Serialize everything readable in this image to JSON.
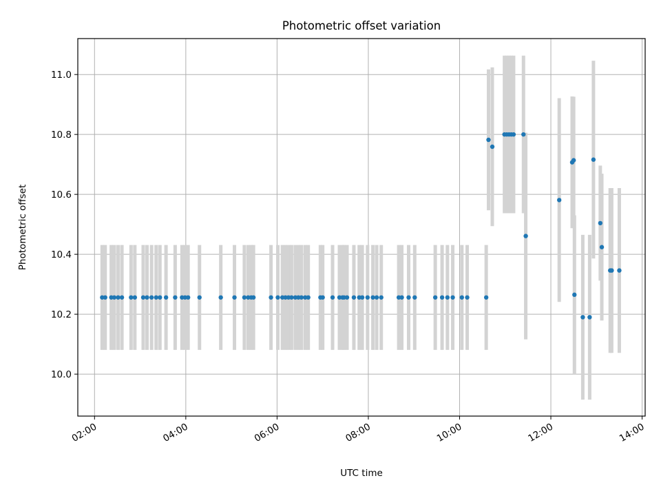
{
  "chart_data": {
    "type": "scatter",
    "title": "Photometric offset variation",
    "xlabel": "UTC time",
    "ylabel": "Photometric offset",
    "x_ticks": [
      "02:00",
      "04:00",
      "06:00",
      "08:00",
      "10:00",
      "12:00",
      "14:00"
    ],
    "y_ticks": [
      "10.0",
      "10.2",
      "10.4",
      "10.6",
      "10.8",
      "11.0"
    ],
    "xlim": [
      "01:38",
      "14:04"
    ],
    "ylim": [
      9.86,
      11.12
    ],
    "grid": true,
    "colors": {
      "point": "#1f77b4",
      "errorbar": "#d3d3d3",
      "grid": "#b0b0b0"
    },
    "points": [
      {
        "x": "02:10",
        "y": 10.256,
        "err": 0.175
      },
      {
        "x": "02:14",
        "y": 10.256,
        "err": 0.175
      },
      {
        "x": "02:22",
        "y": 10.256,
        "err": 0.175
      },
      {
        "x": "02:26",
        "y": 10.256,
        "err": 0.175
      },
      {
        "x": "02:31",
        "y": 10.256,
        "err": 0.175
      },
      {
        "x": "02:36",
        "y": 10.256,
        "err": 0.175
      },
      {
        "x": "02:48",
        "y": 10.256,
        "err": 0.175
      },
      {
        "x": "02:53",
        "y": 10.256,
        "err": 0.175
      },
      {
        "x": "03:04",
        "y": 10.256,
        "err": 0.175
      },
      {
        "x": "03:09",
        "y": 10.256,
        "err": 0.175
      },
      {
        "x": "03:15",
        "y": 10.256,
        "err": 0.175
      },
      {
        "x": "03:21",
        "y": 10.256,
        "err": 0.175
      },
      {
        "x": "03:26",
        "y": 10.256,
        "err": 0.175
      },
      {
        "x": "03:34",
        "y": 10.256,
        "err": 0.175
      },
      {
        "x": "03:46",
        "y": 10.256,
        "err": 0.175
      },
      {
        "x": "03:55",
        "y": 10.256,
        "err": 0.175
      },
      {
        "x": "03:59",
        "y": 10.256,
        "err": 0.175
      },
      {
        "x": "04:03",
        "y": 10.256,
        "err": 0.175
      },
      {
        "x": "04:18",
        "y": 10.256,
        "err": 0.175
      },
      {
        "x": "04:46",
        "y": 10.256,
        "err": 0.175
      },
      {
        "x": "05:04",
        "y": 10.256,
        "err": 0.175
      },
      {
        "x": "05:17",
        "y": 10.256,
        "err": 0.175
      },
      {
        "x": "05:22",
        "y": 10.256,
        "err": 0.175
      },
      {
        "x": "05:26",
        "y": 10.256,
        "err": 0.175
      },
      {
        "x": "05:29",
        "y": 10.256,
        "err": 0.175
      },
      {
        "x": "05:52",
        "y": 10.256,
        "err": 0.175
      },
      {
        "x": "06:01",
        "y": 10.256,
        "err": 0.175
      },
      {
        "x": "06:07",
        "y": 10.256,
        "err": 0.175
      },
      {
        "x": "06:11",
        "y": 10.256,
        "err": 0.175
      },
      {
        "x": "06:15",
        "y": 10.256,
        "err": 0.175
      },
      {
        "x": "06:19",
        "y": 10.256,
        "err": 0.175
      },
      {
        "x": "06:24",
        "y": 10.256,
        "err": 0.175
      },
      {
        "x": "06:28",
        "y": 10.256,
        "err": 0.175
      },
      {
        "x": "06:32",
        "y": 10.256,
        "err": 0.175
      },
      {
        "x": "06:37",
        "y": 10.256,
        "err": 0.175
      },
      {
        "x": "06:41",
        "y": 10.256,
        "err": 0.175
      },
      {
        "x": "06:57",
        "y": 10.256,
        "err": 0.175
      },
      {
        "x": "07:00",
        "y": 10.256,
        "err": 0.175
      },
      {
        "x": "07:13",
        "y": 10.256,
        "err": 0.175
      },
      {
        "x": "07:22",
        "y": 10.256,
        "err": 0.175
      },
      {
        "x": "07:26",
        "y": 10.256,
        "err": 0.175
      },
      {
        "x": "07:28",
        "y": 10.256,
        "err": 0.175
      },
      {
        "x": "07:32",
        "y": 10.256,
        "err": 0.175
      },
      {
        "x": "07:41",
        "y": 10.256,
        "err": 0.175
      },
      {
        "x": "07:48",
        "y": 10.256,
        "err": 0.175
      },
      {
        "x": "07:52",
        "y": 10.256,
        "err": 0.175
      },
      {
        "x": "07:59",
        "y": 10.256,
        "err": 0.175
      },
      {
        "x": "08:06",
        "y": 10.256,
        "err": 0.175
      },
      {
        "x": "08:11",
        "y": 10.256,
        "err": 0.175
      },
      {
        "x": "08:17",
        "y": 10.256,
        "err": 0.175
      },
      {
        "x": "08:40",
        "y": 10.256,
        "err": 0.175
      },
      {
        "x": "08:44",
        "y": 10.256,
        "err": 0.175
      },
      {
        "x": "08:53",
        "y": 10.256,
        "err": 0.175
      },
      {
        "x": "09:01",
        "y": 10.256,
        "err": 0.175
      },
      {
        "x": "09:28",
        "y": 10.256,
        "err": 0.175
      },
      {
        "x": "09:37",
        "y": 10.256,
        "err": 0.175
      },
      {
        "x": "09:44",
        "y": 10.256,
        "err": 0.175
      },
      {
        "x": "09:51",
        "y": 10.256,
        "err": 0.175
      },
      {
        "x": "10:03",
        "y": 10.256,
        "err": 0.175
      },
      {
        "x": "10:10",
        "y": 10.256,
        "err": 0.175
      },
      {
        "x": "10:35",
        "y": 10.256,
        "err": 0.175
      },
      {
        "x": "10:38",
        "y": 10.782,
        "err": 0.235
      },
      {
        "x": "10:43",
        "y": 10.759,
        "err": 0.265
      },
      {
        "x": "10:59",
        "y": 10.8,
        "err": 0.263
      },
      {
        "x": "11:02",
        "y": 10.8,
        "err": 0.263
      },
      {
        "x": "11:05",
        "y": 10.8,
        "err": 0.263
      },
      {
        "x": "11:08",
        "y": 10.8,
        "err": 0.263
      },
      {
        "x": "11:11",
        "y": 10.8,
        "err": 0.263
      },
      {
        "x": "11:24",
        "y": 10.8,
        "err": 0.263
      },
      {
        "x": "11:27",
        "y": 10.461,
        "err": 0.345
      },
      {
        "x": "12:11",
        "y": 10.581,
        "err": 0.34
      },
      {
        "x": "12:28",
        "y": 10.707,
        "err": 0.22
      },
      {
        "x": "12:30",
        "y": 10.714,
        "err": 0.212
      },
      {
        "x": "12:31",
        "y": 10.265,
        "err": 0.265
      },
      {
        "x": "12:42",
        "y": 10.19,
        "err": 0.275
      },
      {
        "x": "12:51",
        "y": 10.19,
        "err": 0.275
      },
      {
        "x": "12:56",
        "y": 10.716,
        "err": 0.33
      },
      {
        "x": "13:05",
        "y": 10.504,
        "err": 0.192
      },
      {
        "x": "13:07",
        "y": 10.424,
        "err": 0.245
      },
      {
        "x": "13:18",
        "y": 10.346,
        "err": 0.275
      },
      {
        "x": "13:20",
        "y": 10.346,
        "err": 0.275
      },
      {
        "x": "13:30",
        "y": 10.346,
        "err": 0.275
      }
    ]
  }
}
